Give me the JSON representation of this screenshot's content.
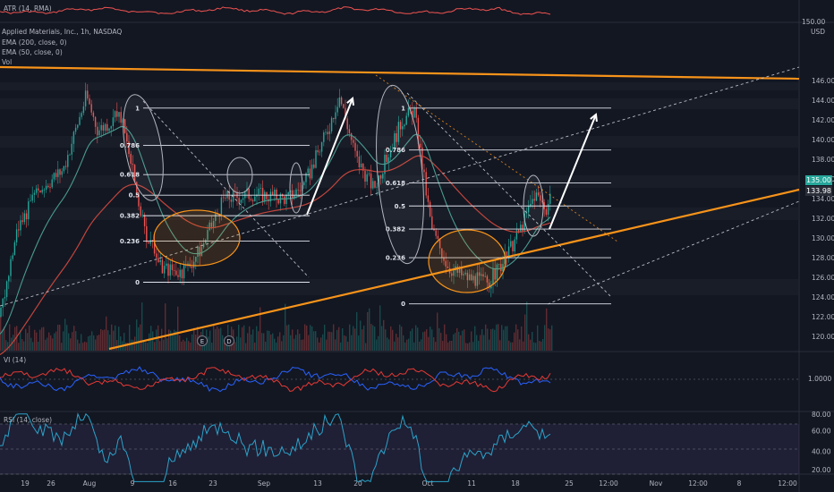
{
  "panes": {
    "atr": {
      "label": "ATR (14, RMA)"
    },
    "main": {
      "symbol": "Applied Materials, Inc., 1h, NASDAQ",
      "ema200": "EMA (200, close, 0)",
      "ema50": "EMA (50, close, 0)",
      "vol": "Vol",
      "currency": "USD",
      "top_tick": "150.00",
      "last_price": "135.00",
      "ema_price": "133.98"
    },
    "vi": {
      "label": "VI (14)",
      "tick": "1.0000"
    },
    "rsi": {
      "label": "RSI (14, close)"
    }
  },
  "colors": {
    "up": "#26a69a",
    "down": "#ef5350",
    "orange": "#f7931a",
    "ema200": "#c2453c",
    "ema50": "#4a9a8f",
    "rsi": "#2ba3c9",
    "vi_plus": "#2962ff",
    "vi_minus": "#e53935",
    "accent": "#2962ff"
  },
  "chart_data": [
    {
      "type": "line",
      "title": "Applied Materials, Inc., 1h, NASDAQ",
      "series": [
        {
          "name": "EMA (200, close, 0)",
          "values": []
        },
        {
          "name": "EMA (50, close, 0)",
          "values": []
        }
      ],
      "x_ticks": [
        "19",
        "26",
        "Aug",
        "9",
        "16",
        "23",
        "Sep",
        "13",
        "20",
        "Oct",
        "11",
        "18",
        "25",
        "12:00",
        "Nov",
        "12:00",
        "8",
        "12:00"
      ],
      "y_ticks": [
        120,
        122,
        124,
        126,
        128,
        130,
        132,
        134,
        136,
        138,
        140,
        142,
        144,
        146
      ],
      "ylim": [
        119.5,
        150
      ],
      "price_path": [
        {
          "d": "Jul 19",
          "v": 122
        },
        {
          "d": "Jul 22",
          "v": 131
        },
        {
          "d": "Jul 26",
          "v": 135
        },
        {
          "d": "Jul 30",
          "v": 137
        },
        {
          "d": "Aug 3",
          "v": 144.5
        },
        {
          "d": "Aug 5",
          "v": 141
        },
        {
          "d": "Aug 9",
          "v": 142.5
        },
        {
          "d": "Aug 11",
          "v": 137
        },
        {
          "d": "Aug 13",
          "v": 131
        },
        {
          "d": "Aug 16",
          "v": 127
        },
        {
          "d": "Aug 20",
          "v": 126.5
        },
        {
          "d": "Aug 23",
          "v": 129
        },
        {
          "d": "Aug 27",
          "v": 134
        },
        {
          "d": "Sep 1",
          "v": 134.5
        },
        {
          "d": "Sep 7",
          "v": 134
        },
        {
          "d": "Sep 10",
          "v": 135.5
        },
        {
          "d": "Sep 14",
          "v": 141
        },
        {
          "d": "Sep 16",
          "v": 144.5
        },
        {
          "d": "Sep 19",
          "v": 138
        },
        {
          "d": "Sep 22",
          "v": 135
        },
        {
          "d": "Sep 27",
          "v": 142
        },
        {
          "d": "Sep 29",
          "v": 143
        },
        {
          "d": "Oct 2",
          "v": 131
        },
        {
          "d": "Oct 5",
          "v": 127
        },
        {
          "d": "Oct 8",
          "v": 126
        },
        {
          "d": "Oct 12",
          "v": 125.5
        },
        {
          "d": "Oct 15",
          "v": 128
        },
        {
          "d": "Oct 18",
          "v": 131.5
        },
        {
          "d": "Oct 20",
          "v": 134.5
        },
        {
          "d": "Oct 22",
          "v": 133
        },
        {
          "d": "Oct 23",
          "v": 135
        }
      ],
      "fib_left": {
        "levels": [
          "1",
          "0.786",
          "0.618",
          "0.5",
          "0.382",
          "0.236",
          "0"
        ],
        "ratios": [
          1,
          0.786,
          0.618,
          0.5,
          0.382,
          0.236,
          0
        ],
        "high": 143.2,
        "low": 125.5
      },
      "fib_right": {
        "levels": [
          "1",
          "0.786",
          "0.618",
          "0.5",
          "0.382",
          "0.236",
          "0"
        ],
        "ratios": [
          1,
          0.786,
          0.618,
          0.5,
          0.382,
          0.236,
          0
        ],
        "high": 143.2,
        "low": 123.3
      }
    }
  ]
}
